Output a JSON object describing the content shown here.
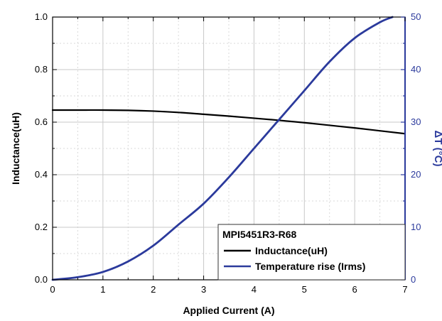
{
  "chart_data": {
    "type": "line",
    "title": "",
    "xlabel": "Applied Current (A)",
    "ylabel_left": "Inductance(uH)",
    "ylabel_right": "ΔT (°C)",
    "xlim": [
      0,
      7
    ],
    "ylim_left": [
      0,
      1.0
    ],
    "ylim_right": [
      0,
      50
    ],
    "x_ticks": [
      "0",
      "1",
      "2",
      "3",
      "4",
      "5",
      "6",
      "7"
    ],
    "y_left_ticks": [
      "0.0",
      "0.2",
      "0.4",
      "0.6",
      "0.8",
      "1.0"
    ],
    "y_right_ticks": [
      "0",
      "10",
      "20",
      "30",
      "40",
      "50"
    ],
    "grid": true,
    "legend": {
      "title": "MPI5451R3-R68",
      "placement": "bottom-right"
    },
    "series": [
      {
        "name": "Inductance(uH)",
        "axis": "left",
        "color": "#000000",
        "x": [
          0,
          0.5,
          1.0,
          1.5,
          2.0,
          2.5,
          3.0,
          3.5,
          4.0,
          4.5,
          5.0,
          5.5,
          6.0,
          6.5,
          7.0
        ],
        "y": [
          0.646,
          0.646,
          0.646,
          0.645,
          0.642,
          0.637,
          0.63,
          0.623,
          0.615,
          0.607,
          0.598,
          0.588,
          0.578,
          0.567,
          0.556
        ]
      },
      {
        "name": "Temperature rise (Irms)",
        "axis": "right",
        "color": "#2b3a9c",
        "x": [
          0,
          0.5,
          1.0,
          1.5,
          2.0,
          2.5,
          3.0,
          3.5,
          4.0,
          4.5,
          5.0,
          5.5,
          6.0,
          6.5,
          6.75
        ],
        "y": [
          0,
          0.5,
          1.5,
          3.5,
          6.5,
          10.5,
          14.5,
          19.5,
          25,
          30.5,
          36,
          41.5,
          46,
          49,
          50
        ]
      }
    ]
  }
}
